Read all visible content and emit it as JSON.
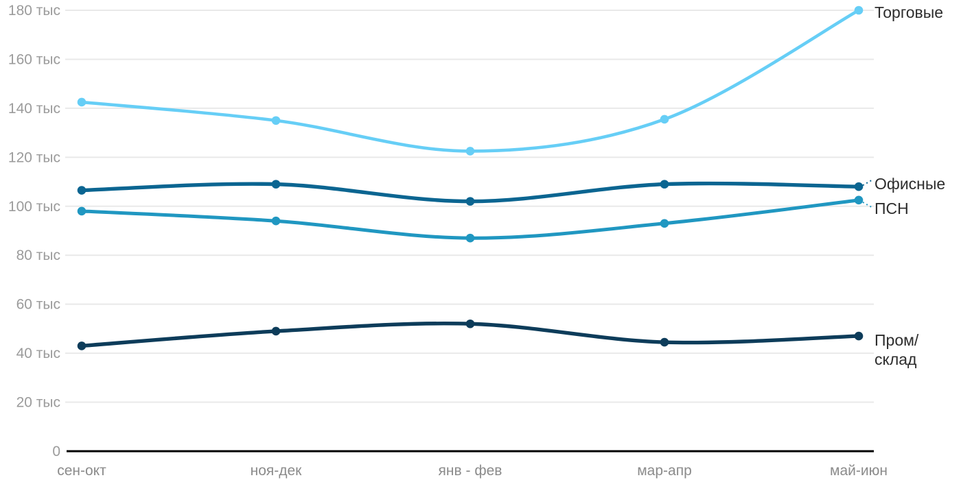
{
  "chart_data": {
    "type": "line",
    "title": "",
    "xlabel": "",
    "ylabel": "",
    "unit": "тыс",
    "categories": [
      "сен-окт",
      "ноя-дек",
      "янв - фев",
      "мар-апр",
      "май-июн"
    ],
    "series": [
      {
        "name": "Торговые",
        "color": "#66cef6",
        "values": [
          142.5,
          135,
          122.5,
          135.5,
          180
        ]
      },
      {
        "name": "Офисные",
        "color": "#0b6591",
        "values": [
          106.5,
          109,
          102,
          109,
          108
        ]
      },
      {
        "name": "ПСН",
        "color": "#2097c1",
        "values": [
          98,
          94,
          87,
          93,
          102.5
        ]
      },
      {
        "name": "Пром/склад",
        "color": "#0d3c5a",
        "values": [
          43,
          49,
          52,
          44.5,
          47
        ],
        "label_lines": [
          "Пром/",
          "склад"
        ]
      }
    ],
    "y_ticks": [
      {
        "value": 0,
        "label": "0"
      },
      {
        "value": 20,
        "label": "20 тыс"
      },
      {
        "value": 40,
        "label": "40 тыс"
      },
      {
        "value": 60,
        "label": "60 тыс"
      },
      {
        "value": 80,
        "label": "80 тыс"
      },
      {
        "value": 100,
        "label": "100 тыс"
      },
      {
        "value": 120,
        "label": "120 тыс"
      },
      {
        "value": 140,
        "label": "140 тыс"
      },
      {
        "value": 160,
        "label": "160 тыс"
      },
      {
        "value": 180,
        "label": "180 тыс"
      }
    ],
    "ylim": [
      0,
      186
    ],
    "grid": true,
    "curve": "smooth",
    "legend_position": "line-end"
  },
  "styles": {
    "background": "#ffffff",
    "grid_color": "#e9e9e9",
    "axis_color": "#000000",
    "y_tick_label_color": "#9b9b9b",
    "x_tick_label_color": "#8b8b8b",
    "series_label_color": "#2d2d2d"
  }
}
